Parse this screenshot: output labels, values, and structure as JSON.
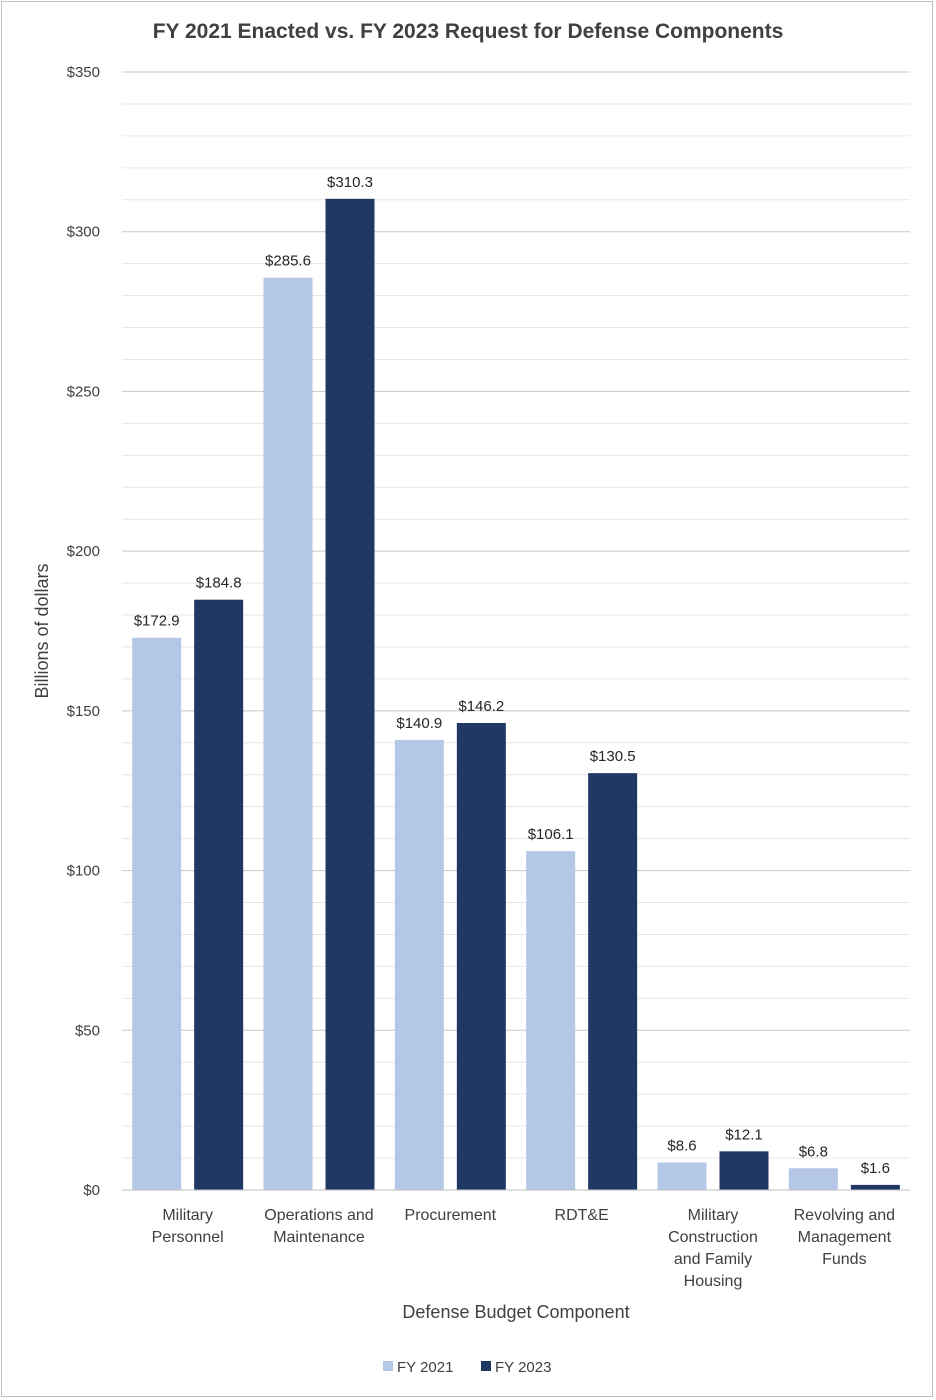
{
  "chart_data": {
    "type": "bar",
    "title": "FY 2021 Enacted vs. FY 2023 Request for Defense Components",
    "xlabel": "Defense Budget Component",
    "ylabel": "Billions of dollars",
    "categories": [
      [
        "Military",
        "Personnel"
      ],
      [
        "Operations and",
        "Maintenance"
      ],
      [
        "Procurement"
      ],
      [
        "RDT&E"
      ],
      [
        "Military",
        "Construction",
        "and Family",
        "Housing"
      ],
      [
        "Revolving and",
        "Management",
        "Funds"
      ]
    ],
    "series": [
      {
        "name": "FY 2021",
        "color": "#b4c7e7",
        "values": [
          172.9,
          285.6,
          140.9,
          106.1,
          8.6,
          6.8
        ],
        "labels": [
          "$172.9",
          "$285.6",
          "$140.9",
          "$106.1",
          "$8.6",
          "$6.8"
        ]
      },
      {
        "name": "FY 2023",
        "color": "#1f3864",
        "values": [
          184.8,
          310.3,
          146.2,
          130.5,
          12.1,
          1.6
        ],
        "labels": [
          "$184.8",
          "$310.3",
          "$146.2",
          "$130.5",
          "$12.1",
          "$1.6"
        ]
      }
    ],
    "ylim": [
      0,
      350
    ],
    "yticks": [
      0,
      50,
      100,
      150,
      200,
      250,
      300,
      350
    ],
    "ytick_labels": [
      "$0",
      "$50",
      "$100",
      "$150",
      "$200",
      "$250",
      "$300",
      "$350"
    ],
    "grid": true,
    "legend_position": "bottom"
  }
}
